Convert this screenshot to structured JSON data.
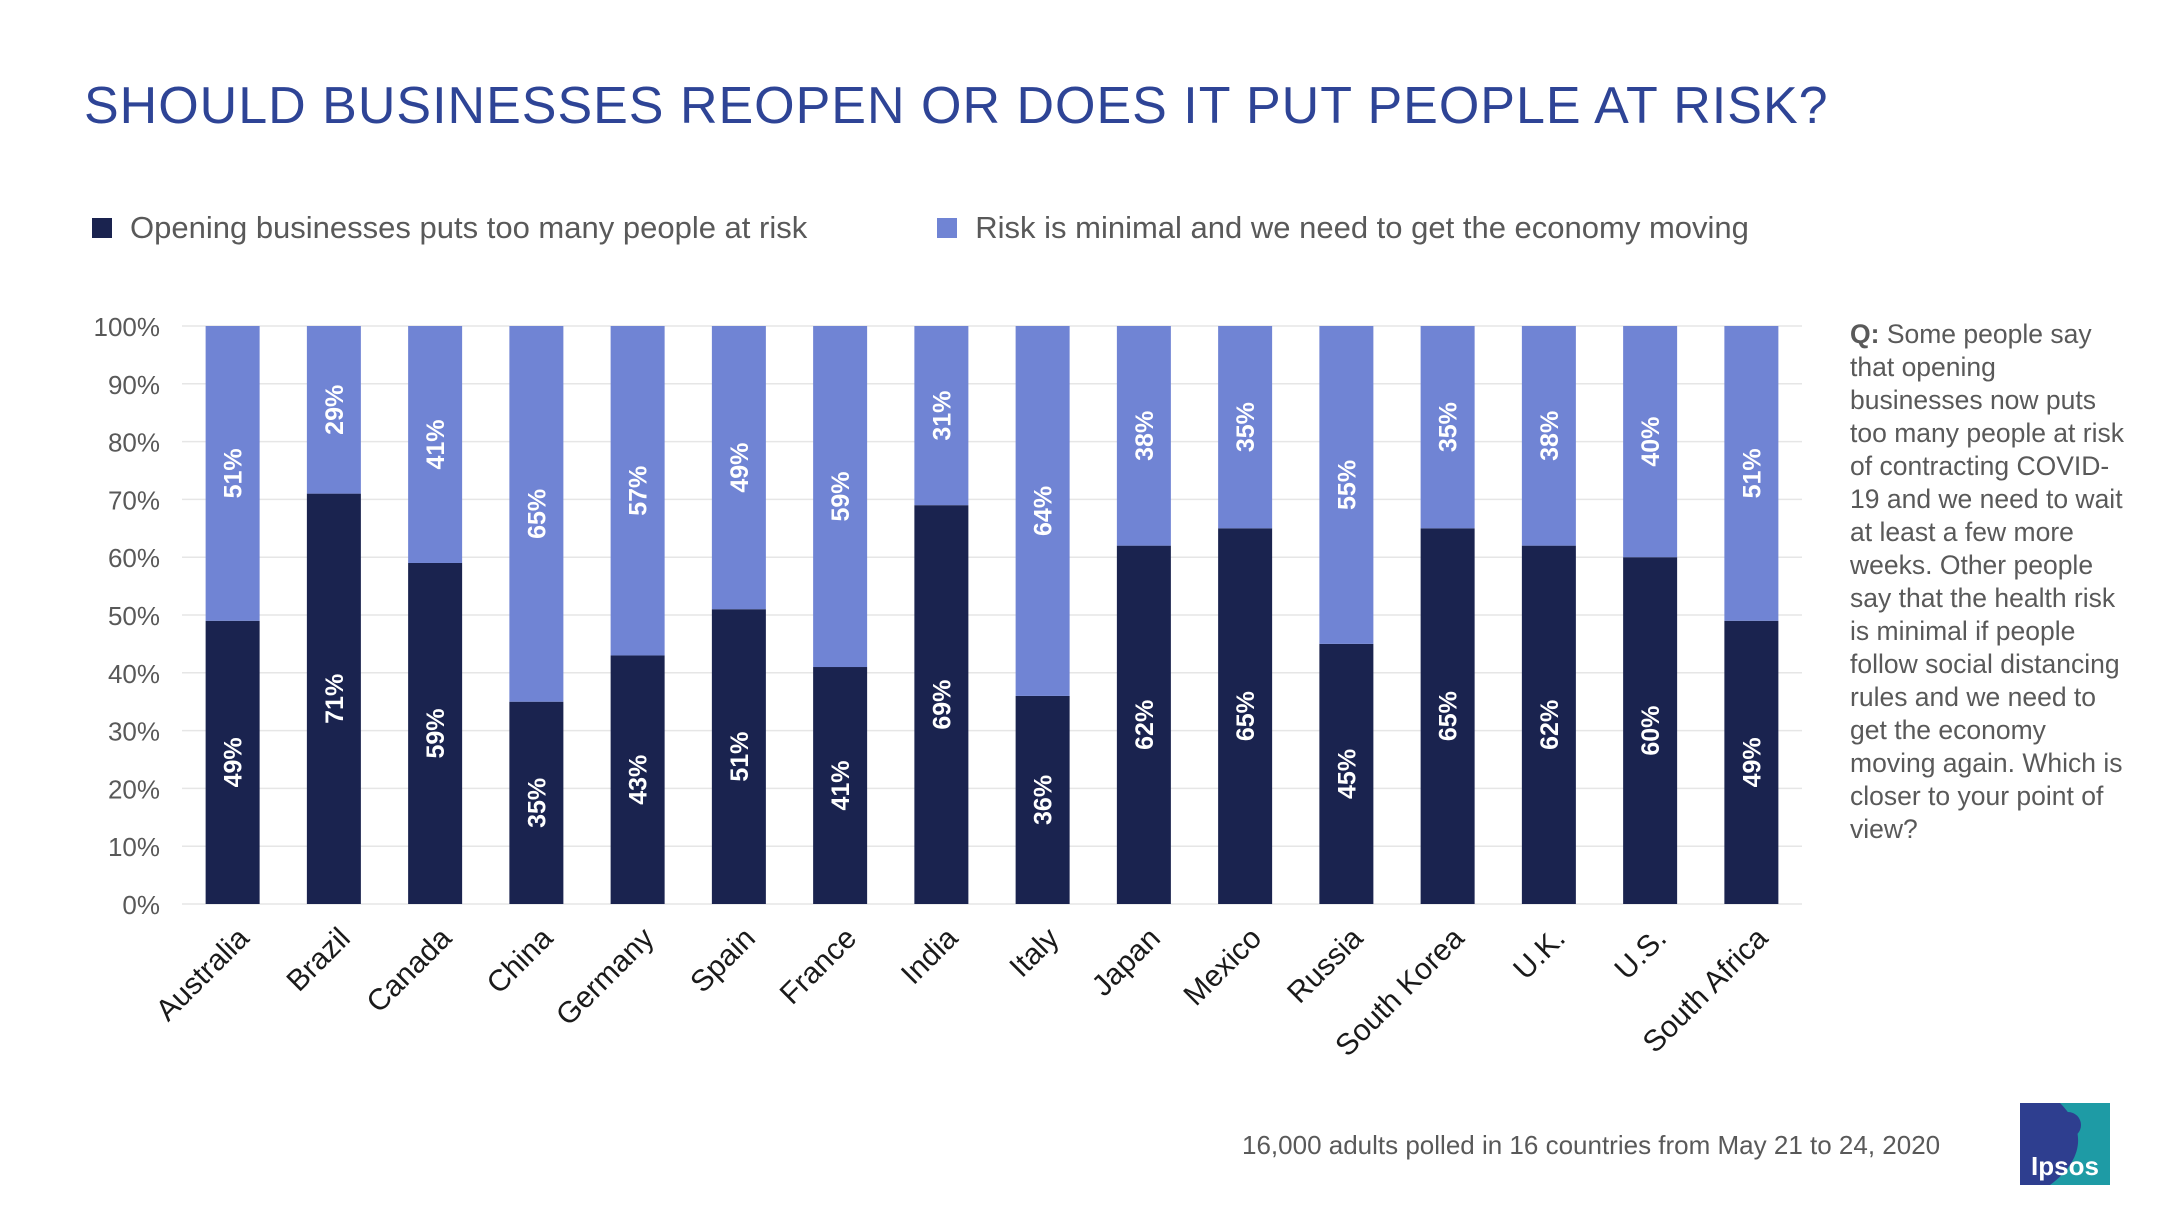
{
  "title": "SHOULD BUSINESSES REOPEN OR DOES IT PUT PEOPLE AT RISK?",
  "legend": [
    {
      "label": "Opening businesses puts too many people at risk",
      "color": "#1A234F"
    },
    {
      "label": "Risk is minimal and we need to get the economy moving",
      "color": "#7084D4"
    }
  ],
  "note": {
    "q": "Q:",
    "text": "Some people say that opening businesses now puts too many people at risk of contracting COVID-19 and we need to wait at least a few more weeks. Other people say that the health risk is minimal if people follow social distancing rules and we need to get the economy moving again. Which is closer to your point of view?"
  },
  "footnote": "16,000 adults polled in 16 countries from May 21 to 24, 2020",
  "logo": {
    "text": "Ipsos",
    "color": "#1E9BA5",
    "accent": "#2E3E8F"
  },
  "chart_data": {
    "type": "bar",
    "stacked": true,
    "categories": [
      "Australia",
      "Brazil",
      "Canada",
      "China",
      "Germany",
      "Spain",
      "France",
      "India",
      "Italy",
      "Japan",
      "Mexico",
      "Russia",
      "South Korea",
      "U.K.",
      "U.S.",
      "South Africa"
    ],
    "series": [
      {
        "name": "Opening businesses puts too many people at risk",
        "color": "#1A234F",
        "values": [
          49,
          71,
          59,
          35,
          43,
          51,
          41,
          69,
          36,
          62,
          65,
          45,
          65,
          62,
          60,
          49
        ]
      },
      {
        "name": "Risk is minimal and we need to get the economy moving",
        "color": "#7084D4",
        "values": [
          51,
          29,
          41,
          65,
          57,
          49,
          59,
          31,
          64,
          38,
          35,
          55,
          35,
          38,
          40,
          51
        ]
      }
    ],
    "value_suffix": "%",
    "yticks": [
      "0%",
      "10%",
      "20%",
      "30%",
      "40%",
      "50%",
      "60%",
      "70%",
      "80%",
      "90%",
      "100%"
    ],
    "ylim": [
      0,
      100
    ],
    "grid": true,
    "legend_position": "top"
  }
}
